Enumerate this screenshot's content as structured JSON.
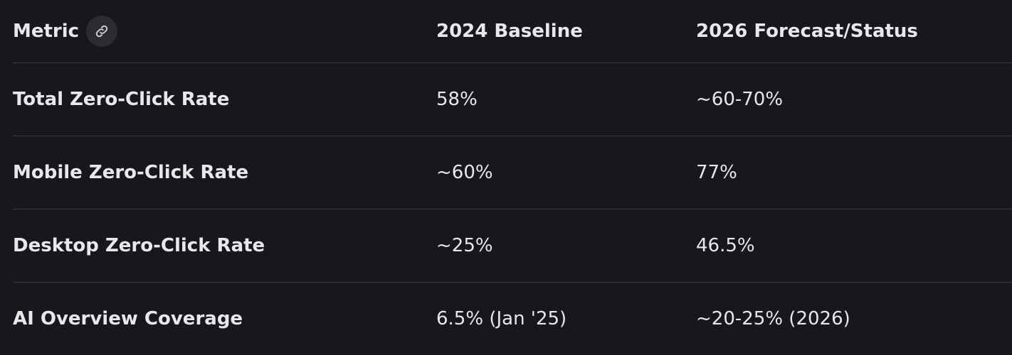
{
  "table": {
    "header": [
      "Metric",
      "2024 Baseline",
      "2026 Forecast/Status"
    ],
    "rows": [
      [
        "Total Zero-Click Rate",
        "58%",
        "~60-70%"
      ],
      [
        "Mobile Zero-Click Rate",
        "~60%",
        "77%"
      ],
      [
        "Desktop Zero-Click Rate",
        "~25%",
        "46.5%"
      ],
      [
        "AI Overview Coverage",
        "6.5% (Jan '25)",
        "~20-25% (2026)"
      ]
    ]
  }
}
